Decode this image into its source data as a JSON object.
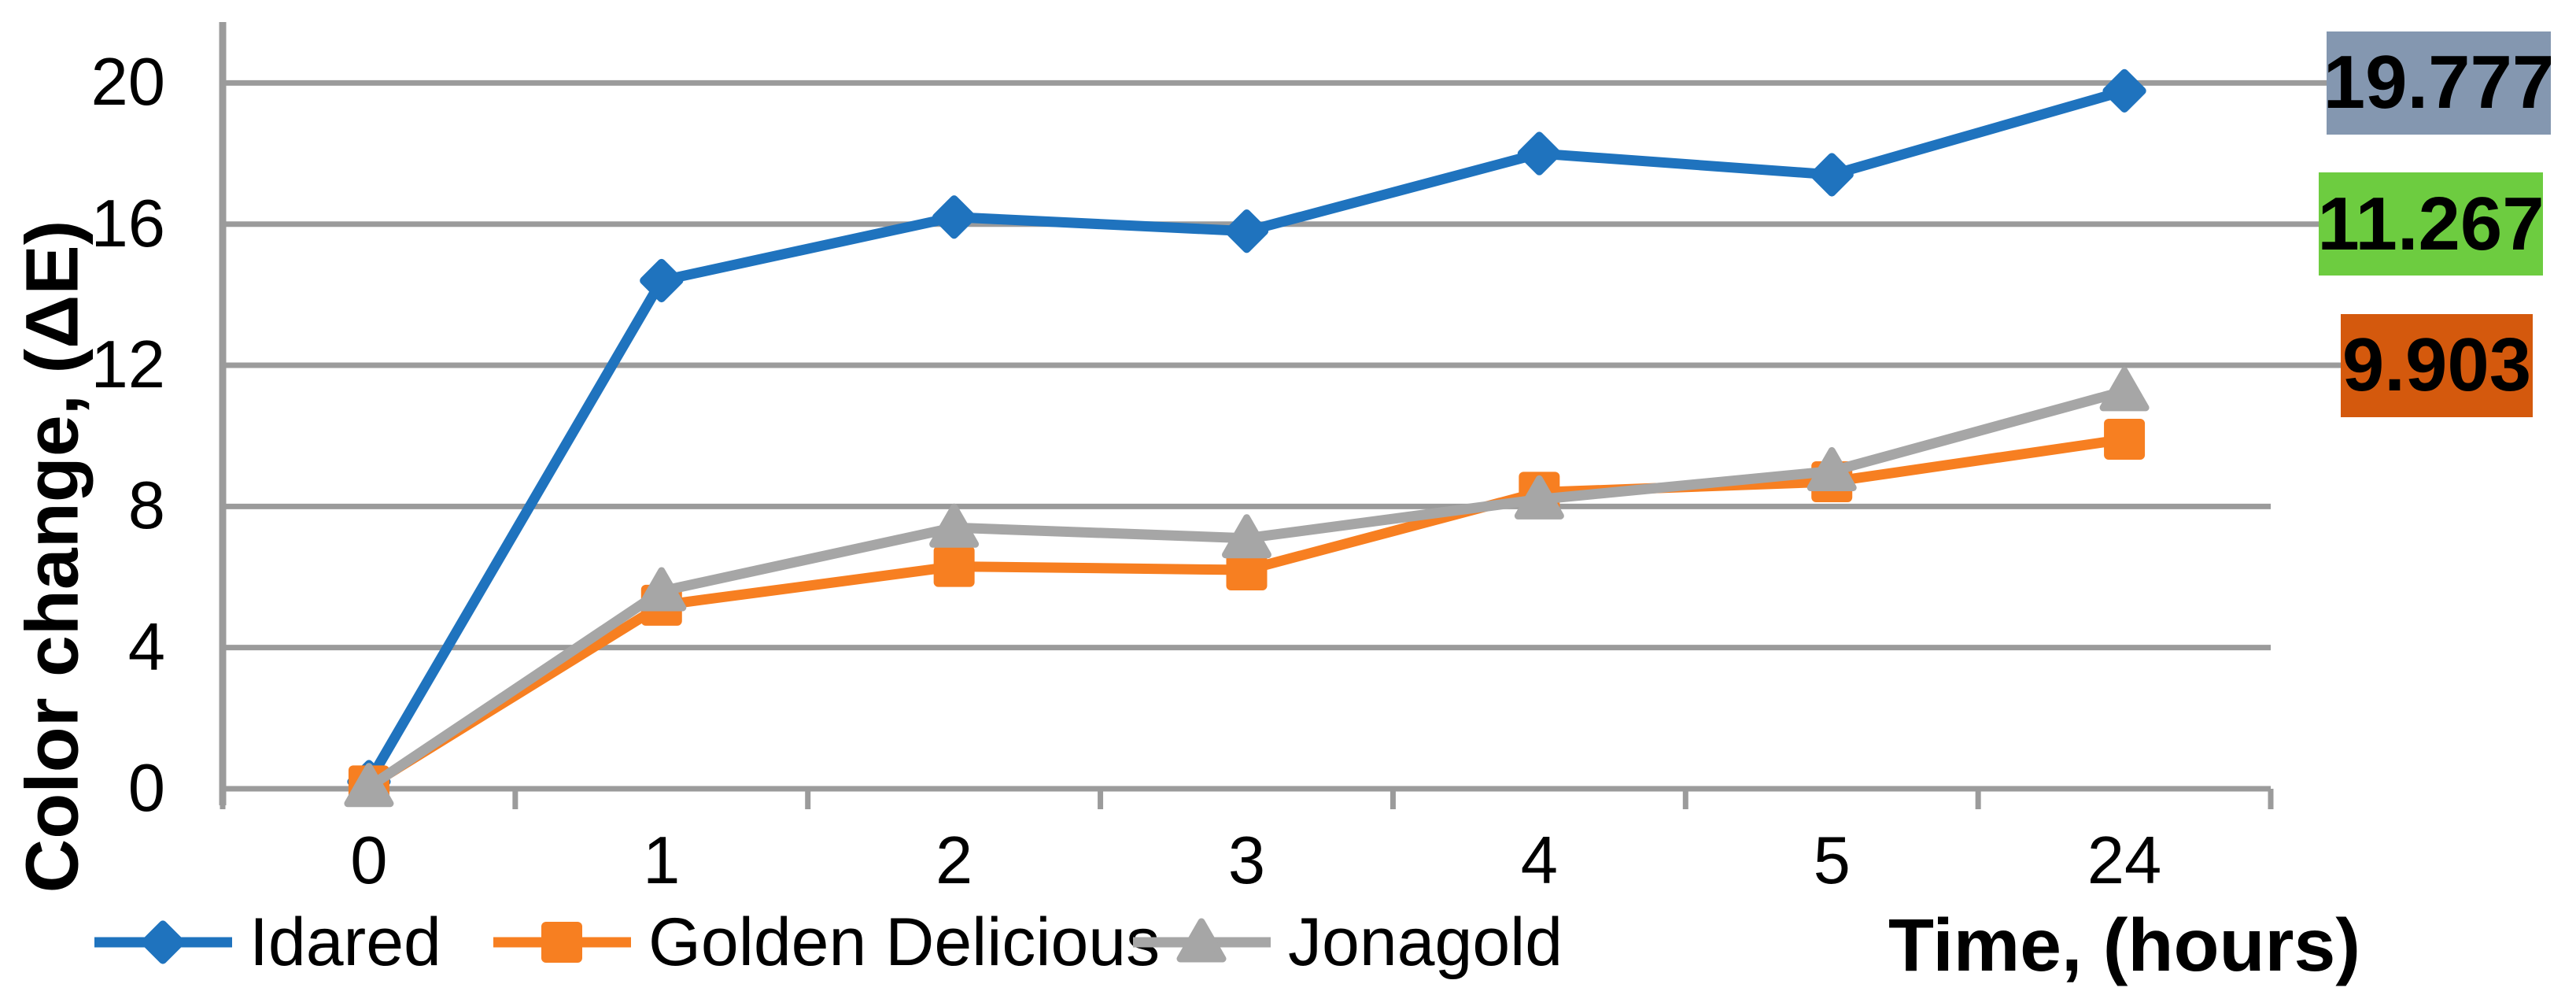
{
  "chart_data": {
    "type": "line",
    "title": "",
    "ylabel": "Color change, (ΔE)",
    "xlabel": "Time, (hours)",
    "categories": [
      "0",
      "1",
      "2",
      "3",
      "4",
      "5",
      "24"
    ],
    "y_ticks": [
      0,
      4,
      8,
      12,
      16,
      20
    ],
    "ylim": [
      0,
      21.5
    ],
    "grid": true,
    "legend_position": "bottom",
    "axis_color": "#9B9B9B",
    "series": [
      {
        "name": "Idared",
        "color": "#1F73BE",
        "marker": "diamond",
        "values": [
          0.2,
          14.4,
          16.2,
          15.8,
          18.0,
          17.4,
          19.777
        ]
      },
      {
        "name": "Golden Delicious",
        "color": "#F77F21",
        "marker": "square",
        "values": [
          0.08,
          5.2,
          6.3,
          6.2,
          8.4,
          8.7,
          9.903
        ]
      },
      {
        "name": "Jonagold",
        "color": "#A6A6A6",
        "marker": "triangle",
        "values": [
          0.05,
          5.6,
          7.4,
          7.1,
          8.2,
          9.0,
          11.267
        ]
      }
    ],
    "end_labels": [
      {
        "text": "19.777",
        "series": "Idared",
        "bg": "#8497B0",
        "anchor_tick": 20
      },
      {
        "text": "11.267",
        "series": "Jonagold",
        "bg": "#6DCC40",
        "anchor_tick": 16
      },
      {
        "text": "9.903",
        "series": "Golden Delicious",
        "bg": "#D4590D",
        "anchor_tick": 12
      }
    ]
  }
}
